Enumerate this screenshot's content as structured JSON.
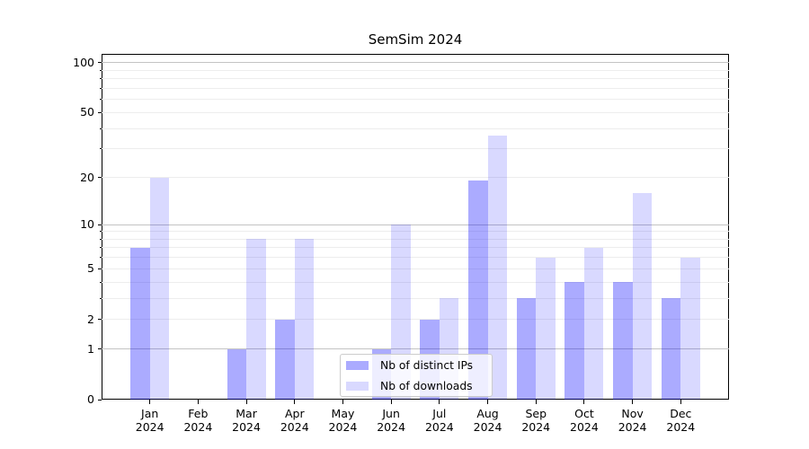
{
  "title": "SemSim 2024",
  "chart_data": {
    "type": "bar",
    "title": "SemSim 2024",
    "categories": [
      "Jan 2024",
      "Feb 2024",
      "Mar 2024",
      "Apr 2024",
      "May 2024",
      "Jun 2024",
      "Jul 2024",
      "Aug 2024",
      "Sep 2024",
      "Oct 2024",
      "Nov 2024",
      "Dec 2024"
    ],
    "category_line1": [
      "Jan",
      "Feb",
      "Mar",
      "Apr",
      "May",
      "Jun",
      "Jul",
      "Aug",
      "Sep",
      "Oct",
      "Nov",
      "Dec"
    ],
    "category_line2": "2024",
    "series": [
      {
        "name": "Nb of distinct IPs",
        "color": "rgba(0,0,255,0.33)",
        "values": [
          7,
          0,
          1,
          2,
          0,
          1,
          2,
          19,
          3,
          4,
          4,
          3
        ]
      },
      {
        "name": "Nb of downloads",
        "color": "rgba(0,0,255,0.15)",
        "values": [
          20,
          0,
          8,
          8,
          0,
          10,
          3,
          36,
          6,
          7,
          16,
          6
        ]
      }
    ],
    "bar_width": 0.4,
    "y_axis": {
      "scale": "log1p",
      "tick_labels": [
        100,
        50,
        20,
        10,
        5,
        2,
        1,
        0
      ],
      "major_gridlines": [
        1,
        10,
        100
      ],
      "minor_gridlines": [
        2,
        3,
        4,
        5,
        6,
        7,
        8,
        9,
        20,
        30,
        40,
        50,
        60,
        70,
        80,
        90
      ],
      "ymax": 113
    },
    "legend": {
      "position": "lower center",
      "entries": [
        "Nb of distinct IPs",
        "Nb of downloads"
      ]
    },
    "xlabel": "",
    "ylabel": "",
    "grid": true
  },
  "colors": {
    "bar_distinct_ips": "rgba(0,0,255,0.33)",
    "bar_downloads": "rgba(0,0,255,0.15)",
    "major_grid": "#c4c4c4",
    "minor_grid": "#ededed",
    "spine": "#000000",
    "background": "#ffffff"
  }
}
